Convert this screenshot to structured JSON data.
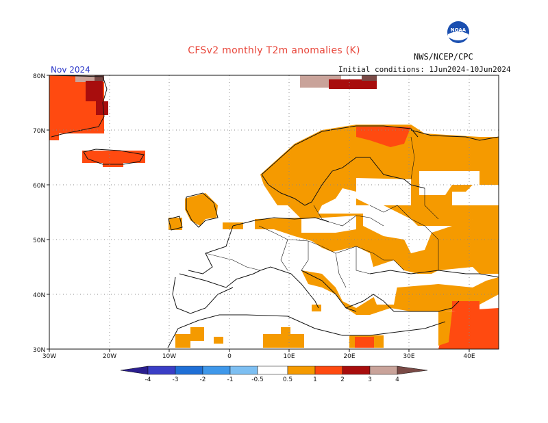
{
  "title": "CFSv2 monthly T2m anomalies (K)",
  "org": "NWS/NCEP/CPC",
  "logo_text": "NOAA",
  "month": "Nov 2024",
  "initial_conditions": "Initial conditions: 1Jun2024-10Jun2024",
  "lat_labels": [
    "80N",
    "70N",
    "60N",
    "50N",
    "40N",
    "30N"
  ],
  "lon_labels": [
    "30W",
    "20W",
    "10W",
    "0",
    "10E",
    "20E",
    "30E",
    "40E"
  ],
  "legend": {
    "ticks": [
      "-4",
      "-3",
      "-2",
      "-1",
      "-0.5",
      "0.5",
      "1",
      "2",
      "3",
      "4"
    ],
    "colors": {
      "lt_-4": "#2b1f8f",
      "-4_-3": "#3a3ec6",
      "-3_-2": "#1f6fd6",
      "-2_-1": "#3f98ea",
      "-1_-0.5": "#7dbff2",
      "0.5_1": "#f59a00",
      "1_2": "#ff4a10",
      "2_3": "#a80d0d",
      "3_4": "#c9a39a",
      "gt_4": "#7a4a46"
    }
  },
  "colors": {
    "warm1": "#f59a00",
    "warm2": "#ff4a10",
    "warm3": "#a80d0d",
    "warm4": "#c9a39a",
    "warm5": "#7a4a46"
  }
}
